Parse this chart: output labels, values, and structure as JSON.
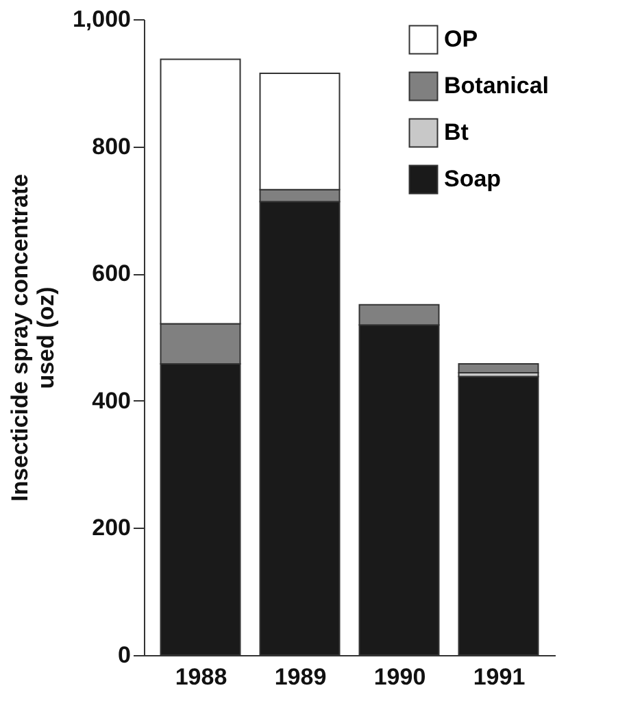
{
  "chart_data": {
    "type": "bar",
    "stacked": true,
    "ylabel": "Insecticide spray concentrate\nused (oz)",
    "categories": [
      "1988",
      "1989",
      "1990",
      "1991"
    ],
    "series": [
      {
        "name": "Soap",
        "color": "#1a1a1a",
        "values": [
          458,
          713,
          519,
          438
        ]
      },
      {
        "name": "Bt",
        "color": "#c8c8c8",
        "values": [
          null,
          null,
          null,
          6
        ]
      },
      {
        "name": "Botanical",
        "color": "#808080",
        "values": [
          63,
          19,
          32,
          14
        ]
      },
      {
        "name": "OP",
        "color": "#ffffff",
        "values": [
          416,
          183,
          null,
          null
        ]
      }
    ],
    "ylim": [
      0,
      1000
    ],
    "yticks": [
      0,
      200,
      400,
      600,
      800,
      {
        "value": 1000,
        "label": "1,000"
      }
    ],
    "grid": false,
    "legend": "top right"
  }
}
